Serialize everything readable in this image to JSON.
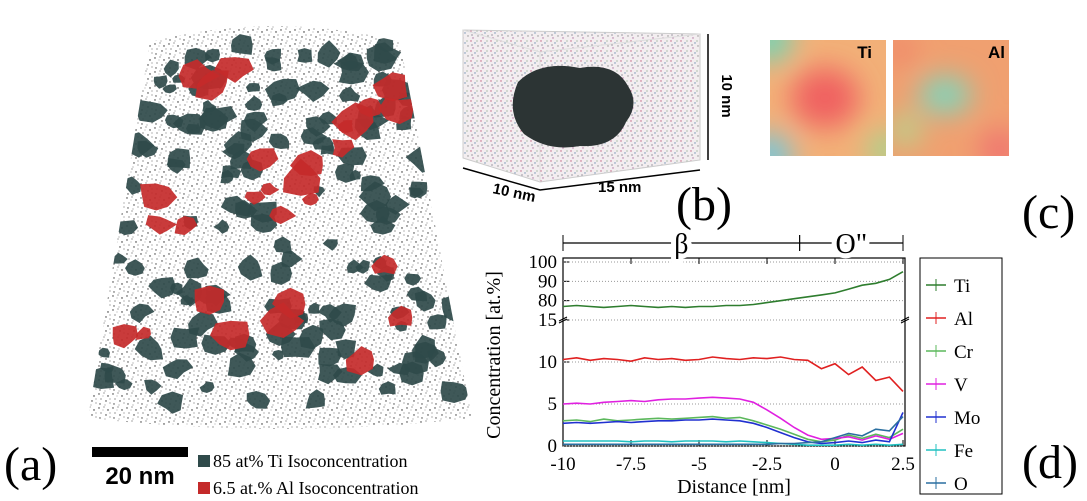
{
  "figure": {
    "panel_labels": [
      "(a)",
      "(b)",
      "(c)",
      "(d)"
    ],
    "scale_bar": "20 nm",
    "isosurface_legend": [
      {
        "label": "85 at% Ti Isoconcentration",
        "color": "#2f4a4a"
      },
      {
        "label": "6.5 at.% Al Isoconcentration",
        "color": "#c42a2a"
      }
    ],
    "box_dimensions": [
      "10 nm",
      "15 nm",
      "10 nm"
    ],
    "map_labels": [
      "Ti",
      "Al"
    ]
  },
  "chart_data": {
    "type": "line",
    "xlabel": "Distance [nm]",
    "ylabel": "Concentration [at.%]",
    "x": [
      -10,
      -9.5,
      -9,
      -8.5,
      -8,
      -7.5,
      -7,
      -6.5,
      -6,
      -5.5,
      -5,
      -4.5,
      -4,
      -3.5,
      -3,
      -2.5,
      -2,
      -1.5,
      -1,
      -0.5,
      0,
      0.5,
      1,
      1.5,
      2,
      2.5
    ],
    "xlim": [
      -10,
      2.5
    ],
    "xticks": [
      -10,
      -7.5,
      -5,
      -2.5,
      0,
      2.5
    ],
    "ylim": [
      0,
      15
    ],
    "yticks": [
      0,
      5,
      10,
      15
    ],
    "ylim_upper": [
      70,
      100
    ],
    "yticks_upper": [
      80,
      90,
      100
    ],
    "grid": true,
    "phases": [
      {
        "label": "β",
        "range": [
          -10,
          -1.3
        ]
      },
      {
        "label": "O\"",
        "range": [
          -1.3,
          2.5
        ]
      }
    ],
    "series": [
      {
        "name": "Ti",
        "color": "#2e7d2e",
        "values": [
          77,
          77.5,
          77,
          76.5,
          77,
          77.5,
          77,
          76.5,
          77,
          76.5,
          77,
          77,
          77.5,
          77.5,
          78,
          79,
          80,
          81,
          82,
          83,
          84,
          86,
          88,
          89,
          91,
          95
        ]
      },
      {
        "name": "Al",
        "color": "#e02020",
        "values": [
          10.3,
          10.5,
          10.2,
          10.4,
          10.3,
          10.1,
          10.5,
          10.3,
          10.4,
          10.2,
          10.3,
          10.6,
          10.4,
          10.3,
          10.5,
          10.4,
          10.6,
          10.3,
          10.2,
          9.2,
          9.8,
          8.5,
          9.4,
          7.8,
          8.2,
          6.5
        ]
      },
      {
        "name": "Cr",
        "color": "#5cb85c",
        "values": [
          3.0,
          3.1,
          2.9,
          3.2,
          3.0,
          3.1,
          3.2,
          3.3,
          3.2,
          3.3,
          3.4,
          3.5,
          3.3,
          3.4,
          3.0,
          2.5,
          2.0,
          1.4,
          0.8,
          0.5,
          0.7,
          1.3,
          0.9,
          1.4,
          1.0,
          2.0
        ]
      },
      {
        "name": "V",
        "color": "#e020e0",
        "values": [
          5.0,
          5.1,
          5.0,
          5.2,
          5.3,
          5.4,
          5.3,
          5.5,
          5.6,
          5.6,
          5.7,
          5.8,
          5.7,
          5.6,
          5.2,
          4.3,
          3.3,
          2.2,
          1.3,
          0.8,
          0.9,
          1.1,
          0.7,
          1.2,
          0.8,
          1.5
        ]
      },
      {
        "name": "Mo",
        "color": "#2030d0",
        "values": [
          2.7,
          2.8,
          2.7,
          2.8,
          2.9,
          2.8,
          2.9,
          3.0,
          3.0,
          3.1,
          3.1,
          3.2,
          3.1,
          3.0,
          2.7,
          2.2,
          1.6,
          1.0,
          0.5,
          0.3,
          0.4,
          0.6,
          0.4,
          0.7,
          0.5,
          4.0
        ]
      },
      {
        "name": "Fe",
        "color": "#20c0c0",
        "values": [
          0.6,
          0.6,
          0.6,
          0.6,
          0.6,
          0.5,
          0.6,
          0.6,
          0.5,
          0.6,
          0.6,
          0.6,
          0.5,
          0.6,
          0.5,
          0.4,
          0.3,
          0.2,
          0.1,
          0.1,
          0.1,
          0.2,
          0.1,
          0.2,
          0.1,
          0.2
        ]
      },
      {
        "name": "O",
        "color": "#2a6fa0",
        "values": [
          0.2,
          0.2,
          0.2,
          0.2,
          0.2,
          0.2,
          0.2,
          0.2,
          0.2,
          0.2,
          0.2,
          0.2,
          0.2,
          0.2,
          0.2,
          0.2,
          0.3,
          0.3,
          0.4,
          0.5,
          1.0,
          1.5,
          1.2,
          2.0,
          1.8,
          3.5
        ]
      }
    ]
  }
}
